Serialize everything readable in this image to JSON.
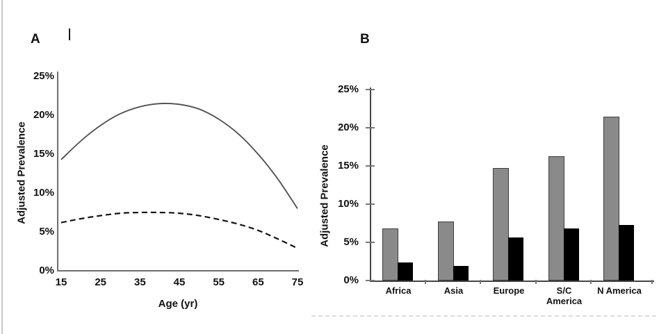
{
  "figure": {
    "background": "#ffffff",
    "panels": {
      "a": {
        "letter": "A"
      },
      "b": {
        "letter": "B"
      }
    }
  },
  "chart_data": [
    {
      "type": "line",
      "panel": "A",
      "title": "",
      "xlabel": "Age (yr)",
      "ylabel": "Adjusted Prevalence",
      "xlim": [
        15,
        75
      ],
      "ylim": [
        0,
        25
      ],
      "grid": false,
      "legend": "none",
      "x_tick_labels": [
        "15",
        "25",
        "35",
        "45",
        "55",
        "65",
        "75"
      ],
      "x_tick_values": [
        15,
        25,
        35,
        45,
        55,
        65,
        75
      ],
      "y_tick_labels": [
        "25%",
        "20%",
        "15%",
        "10%",
        "5%",
        "0%"
      ],
      "y_tick_values": [
        25,
        20,
        15,
        10,
        5,
        0
      ],
      "x": [
        15,
        20,
        25,
        30,
        35,
        40,
        45,
        50,
        55,
        60,
        65,
        70,
        75
      ],
      "series": [
        {
          "name": "higher-prevalence-curve",
          "line_style": "solid",
          "color": "#4d4d4d",
          "values": [
            14.3,
            16.7,
            18.7,
            20.2,
            21.1,
            21.5,
            21.4,
            20.8,
            19.5,
            17.6,
            15.0,
            11.8,
            8.0
          ]
        },
        {
          "name": "lower-prevalence-curve",
          "line_style": "dashed",
          "color": "#141414",
          "values": [
            6.2,
            6.7,
            7.1,
            7.4,
            7.5,
            7.5,
            7.4,
            7.1,
            6.6,
            6.0,
            5.2,
            4.1,
            2.9
          ]
        }
      ]
    },
    {
      "type": "bar",
      "panel": "B",
      "title": "",
      "xlabel": "",
      "ylabel": "Adjusted Prevalence",
      "ylim": [
        0,
        25
      ],
      "grid": false,
      "legend": "none",
      "y_tick_labels": [
        "25%",
        "20%",
        "15%",
        "10%",
        "5%",
        "0%"
      ],
      "y_tick_values": [
        25,
        20,
        15,
        10,
        5,
        0
      ],
      "categories": [
        "Africa",
        "Asia",
        "Europe",
        "S/C America",
        "N America"
      ],
      "category_label_lines": [
        [
          "Africa"
        ],
        [
          "Asia"
        ],
        [
          "Europe"
        ],
        [
          "S/C",
          "America"
        ],
        [
          "N America"
        ]
      ],
      "series": [
        {
          "name": "gray-bars",
          "color": "#8a8a8a",
          "border_color": "#3c3c3c",
          "values": [
            6.8,
            7.7,
            14.7,
            16.3,
            21.5
          ]
        },
        {
          "name": "black-bars",
          "color": "#000000",
          "border_color": "#000000",
          "values": [
            2.4,
            1.9,
            5.6,
            6.8,
            7.3
          ]
        }
      ]
    }
  ],
  "artifacts": {
    "left_border_color": "#c9c9c9",
    "dash_artifact_color": "#dcdcdc"
  }
}
